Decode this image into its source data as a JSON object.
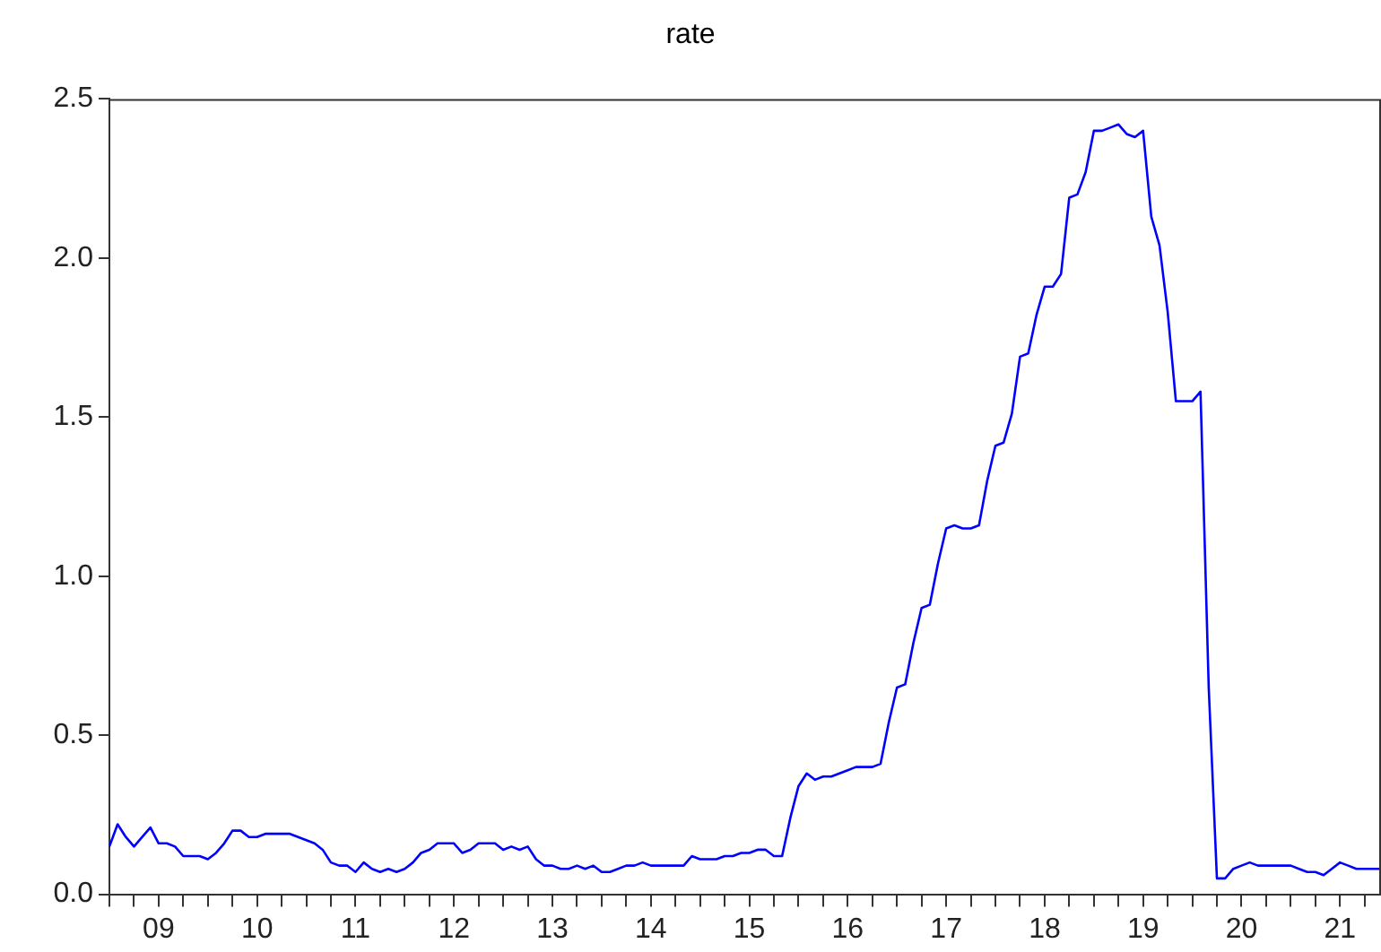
{
  "chart_data": {
    "type": "line",
    "title": "rate",
    "x": [
      "2009-01",
      "2009-02",
      "2009-03",
      "2009-04",
      "2009-05",
      "2009-06",
      "2009-07",
      "2009-08",
      "2009-09",
      "2009-10",
      "2009-11",
      "2009-12",
      "2010-01",
      "2010-02",
      "2010-03",
      "2010-04",
      "2010-05",
      "2010-06",
      "2010-07",
      "2010-08",
      "2010-09",
      "2010-10",
      "2010-11",
      "2010-12",
      "2011-01",
      "2011-02",
      "2011-03",
      "2011-04",
      "2011-05",
      "2011-06",
      "2011-07",
      "2011-08",
      "2011-09",
      "2011-10",
      "2011-11",
      "2011-12",
      "2012-01",
      "2012-02",
      "2012-03",
      "2012-04",
      "2012-05",
      "2012-06",
      "2012-07",
      "2012-08",
      "2012-09",
      "2012-10",
      "2012-11",
      "2012-12",
      "2013-01",
      "2013-02",
      "2013-03",
      "2013-04",
      "2013-05",
      "2013-06",
      "2013-07",
      "2013-08",
      "2013-09",
      "2013-10",
      "2013-11",
      "2013-12",
      "2014-01",
      "2014-02",
      "2014-03",
      "2014-04",
      "2014-05",
      "2014-06",
      "2014-07",
      "2014-08",
      "2014-09",
      "2014-10",
      "2014-11",
      "2014-12",
      "2015-01",
      "2015-02",
      "2015-03",
      "2015-04",
      "2015-05",
      "2015-06",
      "2015-07",
      "2015-08",
      "2015-09",
      "2015-10",
      "2015-11",
      "2015-12",
      "2016-01",
      "2016-02",
      "2016-03",
      "2016-04",
      "2016-05",
      "2016-06",
      "2016-07",
      "2016-08",
      "2016-09",
      "2016-10",
      "2016-11",
      "2016-12",
      "2017-01",
      "2017-02",
      "2017-03",
      "2017-04",
      "2017-05",
      "2017-06",
      "2017-07",
      "2017-08",
      "2017-09",
      "2017-10",
      "2017-11",
      "2017-12",
      "2018-01",
      "2018-02",
      "2018-03",
      "2018-04",
      "2018-05",
      "2018-06",
      "2018-07",
      "2018-08",
      "2018-09",
      "2018-10",
      "2018-11",
      "2018-12",
      "2019-01",
      "2019-02",
      "2019-03",
      "2019-04",
      "2019-05",
      "2019-06",
      "2019-07",
      "2019-08",
      "2019-09",
      "2019-10",
      "2019-11",
      "2019-12",
      "2020-01",
      "2020-02",
      "2020-03",
      "2020-04",
      "2020-05",
      "2020-06",
      "2020-07",
      "2020-08",
      "2020-09",
      "2020-10",
      "2020-11",
      "2020-12",
      "2021-01",
      "2021-02",
      "2021-03",
      "2021-04",
      "2021-05",
      "2021-06",
      "2021-07",
      "2021-08",
      "2021-09",
      "2021-10",
      "2021-11",
      "2021-12"
    ],
    "series": [
      {
        "color": "#0000ff",
        "values": [
          0.15,
          0.22,
          0.18,
          0.15,
          0.18,
          0.21,
          0.16,
          0.16,
          0.15,
          0.12,
          0.12,
          0.12,
          0.11,
          0.13,
          0.16,
          0.2,
          0.2,
          0.18,
          0.18,
          0.19,
          0.19,
          0.19,
          0.19,
          0.18,
          0.17,
          0.16,
          0.14,
          0.1,
          0.09,
          0.09,
          0.07,
          0.1,
          0.08,
          0.07,
          0.08,
          0.07,
          0.08,
          0.1,
          0.13,
          0.14,
          0.16,
          0.16,
          0.16,
          0.13,
          0.14,
          0.16,
          0.16,
          0.16,
          0.14,
          0.15,
          0.14,
          0.15,
          0.11,
          0.09,
          0.09,
          0.08,
          0.08,
          0.09,
          0.08,
          0.09,
          0.07,
          0.07,
          0.08,
          0.09,
          0.09,
          0.1,
          0.09,
          0.09,
          0.09,
          0.09,
          0.09,
          0.12,
          0.11,
          0.11,
          0.11,
          0.12,
          0.12,
          0.13,
          0.13,
          0.14,
          0.14,
          0.12,
          0.12,
          0.24,
          0.34,
          0.38,
          0.36,
          0.37,
          0.37,
          0.38,
          0.39,
          0.4,
          0.4,
          0.4,
          0.41,
          0.54,
          0.65,
          0.66,
          0.79,
          0.9,
          0.91,
          1.04,
          1.15,
          1.16,
          1.15,
          1.15,
          1.16,
          1.3,
          1.41,
          1.42,
          1.51,
          1.69,
          1.7,
          1.82,
          1.91,
          1.91,
          1.95,
          2.19,
          2.2,
          2.27,
          2.4,
          2.4,
          2.41,
          2.42,
          2.39,
          2.38,
          2.4,
          2.13,
          2.04,
          1.83,
          1.55,
          1.55,
          1.55,
          1.58,
          0.65,
          0.05,
          0.05,
          0.08,
          0.09,
          0.1,
          0.09,
          0.09,
          0.09,
          0.09,
          0.09,
          0.08,
          0.07,
          0.07,
          0.06,
          0.08,
          0.1,
          0.09,
          0.08,
          0.08,
          0.08,
          0.08
        ]
      }
    ],
    "xlim": [
      "2009-01",
      "2021-12"
    ],
    "xticks": [
      {
        "value": "2009-01",
        "label": null
      },
      {
        "value": "2009-04",
        "label": null
      },
      {
        "value": "2009-07",
        "label": "09"
      },
      {
        "value": "2009-10",
        "label": null
      },
      {
        "value": "2010-01",
        "label": null
      },
      {
        "value": "2010-04",
        "label": null
      },
      {
        "value": "2010-07",
        "label": "10"
      },
      {
        "value": "2010-10",
        "label": null
      },
      {
        "value": "2011-01",
        "label": null
      },
      {
        "value": "2011-04",
        "label": null
      },
      {
        "value": "2011-07",
        "label": "11"
      },
      {
        "value": "2011-10",
        "label": null
      },
      {
        "value": "2012-01",
        "label": null
      },
      {
        "value": "2012-04",
        "label": null
      },
      {
        "value": "2012-07",
        "label": "12"
      },
      {
        "value": "2012-10",
        "label": null
      },
      {
        "value": "2013-01",
        "label": null
      },
      {
        "value": "2013-04",
        "label": null
      },
      {
        "value": "2013-07",
        "label": "13"
      },
      {
        "value": "2013-10",
        "label": null
      },
      {
        "value": "2014-01",
        "label": null
      },
      {
        "value": "2014-04",
        "label": null
      },
      {
        "value": "2014-07",
        "label": "14"
      },
      {
        "value": "2014-10",
        "label": null
      },
      {
        "value": "2015-01",
        "label": null
      },
      {
        "value": "2015-04",
        "label": null
      },
      {
        "value": "2015-07",
        "label": "15"
      },
      {
        "value": "2015-10",
        "label": null
      },
      {
        "value": "2016-01",
        "label": null
      },
      {
        "value": "2016-04",
        "label": null
      },
      {
        "value": "2016-07",
        "label": "16"
      },
      {
        "value": "2016-10",
        "label": null
      },
      {
        "value": "2017-01",
        "label": null
      },
      {
        "value": "2017-04",
        "label": null
      },
      {
        "value": "2017-07",
        "label": "17"
      },
      {
        "value": "2017-10",
        "label": null
      },
      {
        "value": "2018-01",
        "label": null
      },
      {
        "value": "2018-04",
        "label": null
      },
      {
        "value": "2018-07",
        "label": "18"
      },
      {
        "value": "2018-10",
        "label": null
      },
      {
        "value": "2019-01",
        "label": null
      },
      {
        "value": "2019-04",
        "label": null
      },
      {
        "value": "2019-07",
        "label": "19"
      },
      {
        "value": "2019-10",
        "label": null
      },
      {
        "value": "2020-01",
        "label": null
      },
      {
        "value": "2020-04",
        "label": null
      },
      {
        "value": "2020-07",
        "label": "20"
      },
      {
        "value": "2020-10",
        "label": null
      },
      {
        "value": "2021-01",
        "label": null
      },
      {
        "value": "2021-04",
        "label": null
      },
      {
        "value": "2021-07",
        "label": "21"
      },
      {
        "value": "2021-10",
        "label": null
      }
    ],
    "ylim": [
      0,
      2.5
    ],
    "yticks": [
      {
        "value": 0,
        "label": "0.0"
      },
      {
        "value": 0.5,
        "label": "0.5"
      },
      {
        "value": 1,
        "label": "1.0"
      },
      {
        "value": 1.5,
        "label": "1.5"
      },
      {
        "value": 2,
        "label": "2.0"
      },
      {
        "value": 2.5,
        "label": "2.5"
      }
    ],
    "grid": false,
    "legend": false,
    "marker": "none",
    "line_style": "solid"
  }
}
